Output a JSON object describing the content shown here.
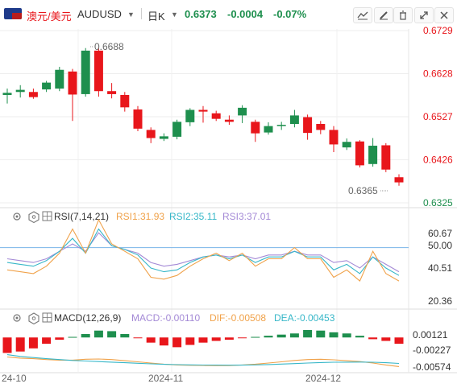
{
  "header": {
    "symbol_cn": "澳元/美元",
    "symbol": "AUDUSD",
    "interval": "日K",
    "last": "0.6373",
    "change": "-0.0004",
    "change_pct": "-0.07%",
    "icons": [
      "australia-flag-icon",
      "dropdown-arrow-icon",
      "indicator-icon",
      "draw-icon",
      "delete-icon",
      "fullscreen-icon",
      "close-icon"
    ]
  },
  "colors": {
    "up": "#1e8f4e",
    "down": "#e8161b",
    "rsi1": "#f0a24a",
    "rsi2": "#37b7c8",
    "rsi3": "#a48ad6",
    "dif": "#f0a24a",
    "dea": "#37b7c8",
    "ref_line": "#7ab4e8"
  },
  "rsi": {
    "title": "RSI(7,14,21)",
    "rsi1_label": "RSI1:31.93",
    "rsi2_label": "RSI2:35.11",
    "rsi3_label": "RSI3:37.01",
    "ticks": [
      "60.67",
      "50.00",
      "40.51",
      "20.36"
    ]
  },
  "macd": {
    "title": "MACD(12,26,9)",
    "macd_label": "MACD:-0.00110",
    "dif_label": "DIF:-0.00508",
    "dea_label": "DEA:-0.00453",
    "ticks": [
      "0.00121",
      "-0.00227",
      "-0.00574"
    ]
  },
  "x_axis": {
    "labels": [
      "24-10",
      "2024-11",
      "2024-12"
    ]
  },
  "chart_data": {
    "type": "candlestick",
    "y_ticks": [
      "0.6729",
      "0.6628",
      "0.6527",
      "0.6426",
      "0.6325"
    ],
    "ylim": [
      0.6325,
      0.6729
    ],
    "annotations": {
      "high": {
        "label": "0.6688",
        "value": 0.6688
      },
      "low": {
        "label": "0.6365",
        "value": 0.6365
      }
    },
    "candles": [
      {
        "o": 0.6578,
        "c": 0.6583,
        "h": 0.6593,
        "l": 0.6558
      },
      {
        "o": 0.6585,
        "c": 0.659,
        "h": 0.6601,
        "l": 0.6572
      },
      {
        "o": 0.6585,
        "c": 0.6573,
        "h": 0.6593,
        "l": 0.6569
      },
      {
        "o": 0.6591,
        "c": 0.6607,
        "h": 0.6611,
        "l": 0.6585
      },
      {
        "o": 0.6593,
        "c": 0.6637,
        "h": 0.6644,
        "l": 0.6587
      },
      {
        "o": 0.6633,
        "c": 0.6579,
        "h": 0.6639,
        "l": 0.6517
      },
      {
        "o": 0.658,
        "c": 0.6682,
        "h": 0.6688,
        "l": 0.6574
      },
      {
        "o": 0.6682,
        "c": 0.6587,
        "h": 0.6688,
        "l": 0.6574
      },
      {
        "o": 0.6587,
        "c": 0.658,
        "h": 0.6606,
        "l": 0.657
      },
      {
        "o": 0.6578,
        "c": 0.6549,
        "h": 0.6585,
        "l": 0.6539
      },
      {
        "o": 0.6544,
        "c": 0.6499,
        "h": 0.6552,
        "l": 0.6493
      },
      {
        "o": 0.6496,
        "c": 0.6477,
        "h": 0.6502,
        "l": 0.6465
      },
      {
        "o": 0.6475,
        "c": 0.6481,
        "h": 0.6488,
        "l": 0.647
      },
      {
        "o": 0.648,
        "c": 0.6515,
        "h": 0.652,
        "l": 0.6474
      },
      {
        "o": 0.6514,
        "c": 0.6543,
        "h": 0.6547,
        "l": 0.6505
      },
      {
        "o": 0.6543,
        "c": 0.6539,
        "h": 0.6552,
        "l": 0.6513
      },
      {
        "o": 0.6535,
        "c": 0.6522,
        "h": 0.6541,
        "l": 0.6517
      },
      {
        "o": 0.652,
        "c": 0.6515,
        "h": 0.653,
        "l": 0.6508
      },
      {
        "o": 0.653,
        "c": 0.6548,
        "h": 0.6554,
        "l": 0.6512
      },
      {
        "o": 0.6515,
        "c": 0.6488,
        "h": 0.652,
        "l": 0.6468
      },
      {
        "o": 0.649,
        "c": 0.6505,
        "h": 0.6514,
        "l": 0.6485
      },
      {
        "o": 0.6506,
        "c": 0.6508,
        "h": 0.6515,
        "l": 0.6496
      },
      {
        "o": 0.651,
        "c": 0.653,
        "h": 0.6543,
        "l": 0.6502
      },
      {
        "o": 0.6526,
        "c": 0.6489,
        "h": 0.6532,
        "l": 0.6473
      },
      {
        "o": 0.651,
        "c": 0.6496,
        "h": 0.6517,
        "l": 0.6486
      },
      {
        "o": 0.6496,
        "c": 0.6462,
        "h": 0.6505,
        "l": 0.6444
      },
      {
        "o": 0.6455,
        "c": 0.6468,
        "h": 0.6476,
        "l": 0.6449
      },
      {
        "o": 0.6469,
        "c": 0.6413,
        "h": 0.6472,
        "l": 0.6408
      },
      {
        "o": 0.6416,
        "c": 0.6459,
        "h": 0.6477,
        "l": 0.641
      },
      {
        "o": 0.646,
        "c": 0.6403,
        "h": 0.6465,
        "l": 0.6397
      },
      {
        "o": 0.6385,
        "c": 0.6373,
        "h": 0.6392,
        "l": 0.6365
      }
    ],
    "rsi": {
      "ylim": [
        20.36,
        60.67
      ],
      "rsi1": [
        38,
        37,
        36,
        40,
        47,
        60,
        47,
        65,
        52,
        48,
        44,
        34,
        33,
        35,
        40,
        44,
        47,
        43,
        47,
        40,
        44,
        44,
        50,
        44,
        44,
        34,
        38,
        32,
        48,
        36,
        32
      ],
      "rsi2": [
        42,
        41,
        40,
        43,
        48,
        55,
        47,
        60,
        51,
        49,
        46,
        39,
        37,
        38,
        42,
        45,
        46,
        44,
        46,
        42,
        45,
        45,
        48,
        45,
        45,
        38,
        41,
        36,
        45,
        39,
        35
      ],
      "rsi3": [
        44,
        43,
        42,
        44,
        48,
        52,
        48,
        58,
        51,
        49,
        47,
        42,
        40,
        41,
        43,
        45,
        46,
        45,
        46,
        44,
        46,
        46,
        48,
        46,
        46,
        42,
        43,
        39,
        45,
        41,
        37
      ]
    },
    "macd": {
      "ylim": [
        -0.006,
        0.002
      ],
      "hist": [
        -0.0027,
        -0.00245,
        -0.0019,
        -0.0011,
        -0.0004,
        0.0001,
        0.0006,
        0.0012,
        0.0011,
        0.0006,
        -0.0001,
        -0.0009,
        -0.0014,
        -0.0017,
        -0.0013,
        -0.0009,
        -0.0006,
        -0.0004,
        -0.0001,
        0.0001,
        0.0003,
        0.0005,
        0.0007,
        0.0013,
        0.0012,
        0.0009,
        0.0007,
        0.0003,
        -0.0003,
        -0.0006,
        -0.0011
      ],
      "dif": [
        -0.0034,
        -0.0036,
        -0.0037,
        -0.00385,
        -0.00395,
        -0.00395,
        -0.0038,
        -0.00375,
        -0.00385,
        -0.00405,
        -0.00425,
        -0.00445,
        -0.00465,
        -0.0048,
        -0.00485,
        -0.00488,
        -0.0049,
        -0.0049,
        -0.0048,
        -0.00465,
        -0.00445,
        -0.00425,
        -0.004,
        -0.00385,
        -0.0038,
        -0.0039,
        -0.00405,
        -0.0042,
        -0.00445,
        -0.0048,
        -0.00508
      ],
      "dea": [
        -0.003,
        -0.0033,
        -0.0035,
        -0.0037,
        -0.00385,
        -0.004,
        -0.0041,
        -0.0042,
        -0.0043,
        -0.0044,
        -0.0045,
        -0.0046,
        -0.00468,
        -0.00474,
        -0.00478,
        -0.00481,
        -0.00482,
        -0.00483,
        -0.00482,
        -0.00478,
        -0.00472,
        -0.00464,
        -0.00455,
        -0.00445,
        -0.00437,
        -0.00432,
        -0.0043,
        -0.00429,
        -0.00432,
        -0.0044,
        -0.00453
      ]
    }
  }
}
